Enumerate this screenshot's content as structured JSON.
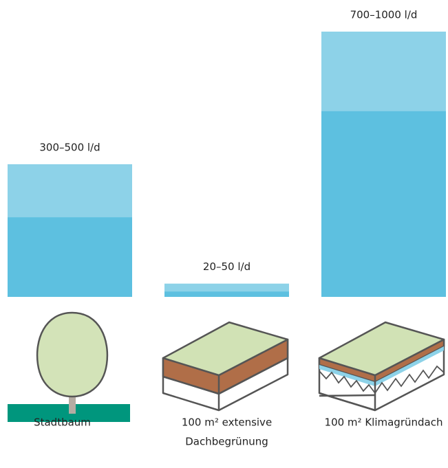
{
  "chart_data": {
    "type": "range_bar",
    "categories": [
      [
        "Stadtbaum"
      ],
      [
        "100 m² extensive",
        "Dachbegrünung"
      ],
      [
        "100 m² Klimagründach"
      ]
    ],
    "low": [
      300,
      20,
      700
    ],
    "high": [
      500,
      50,
      1000
    ],
    "value_labels": [
      "300–500 l/d",
      "20–50 l/d",
      "700–1000 l/d"
    ],
    "low_color": "#5dc0e0",
    "high_color": "#8dd2e8",
    "ylim": [
      0,
      1000
    ]
  }
}
